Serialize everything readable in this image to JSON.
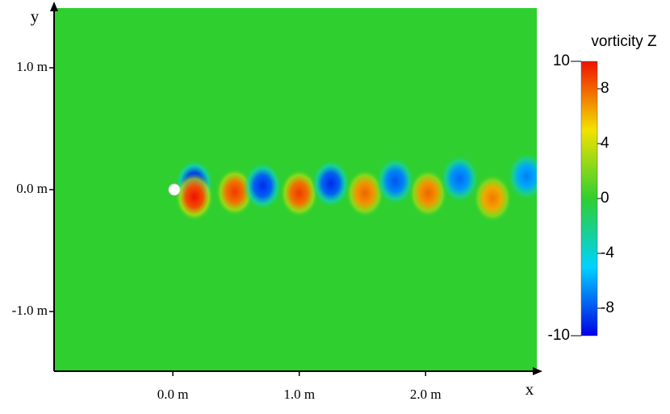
{
  "chart_data": {
    "type": "field",
    "x_label": "x",
    "y_label": "y",
    "xlim": [
      -0.94,
      2.88
    ],
    "ylim": [
      -1.49,
      1.49
    ],
    "xticks": [
      {
        "value": 0,
        "label": "0.0 m"
      },
      {
        "value": 1,
        "label": "1.0 m"
      },
      {
        "value": 2,
        "label": "2.0 m"
      }
    ],
    "yticks": [
      {
        "value": 1,
        "label": "1.0 m"
      },
      {
        "value": 0,
        "label": "0.0 m"
      },
      {
        "value": -1,
        "label": "-1.0 m"
      }
    ],
    "colorbar_title": "vorticity Z",
    "clim": [
      -10,
      10
    ],
    "colorbar_ticks": [
      10,
      8,
      4,
      0,
      -4,
      -8,
      -10
    ],
    "colormap": [
      "#0000e6",
      "#00d2ff",
      "#2fcf2f",
      "#f2e200",
      "#f01000"
    ],
    "vortices": {
      "x": [
        0.17,
        0.17,
        0.49,
        0.71,
        1.0,
        1.25,
        1.52,
        1.76,
        2.02,
        2.27,
        2.53,
        2.8
      ],
      "y": [
        0.05,
        -0.06,
        -0.02,
        0.03,
        -0.03,
        0.05,
        -0.03,
        0.07,
        -0.03,
        0.09,
        -0.07,
        0.11
      ],
      "vorticity": [
        -10,
        10,
        9,
        -9,
        9,
        -9,
        8,
        -8,
        8,
        -7.5,
        7.5,
        -7
      ]
    }
  }
}
